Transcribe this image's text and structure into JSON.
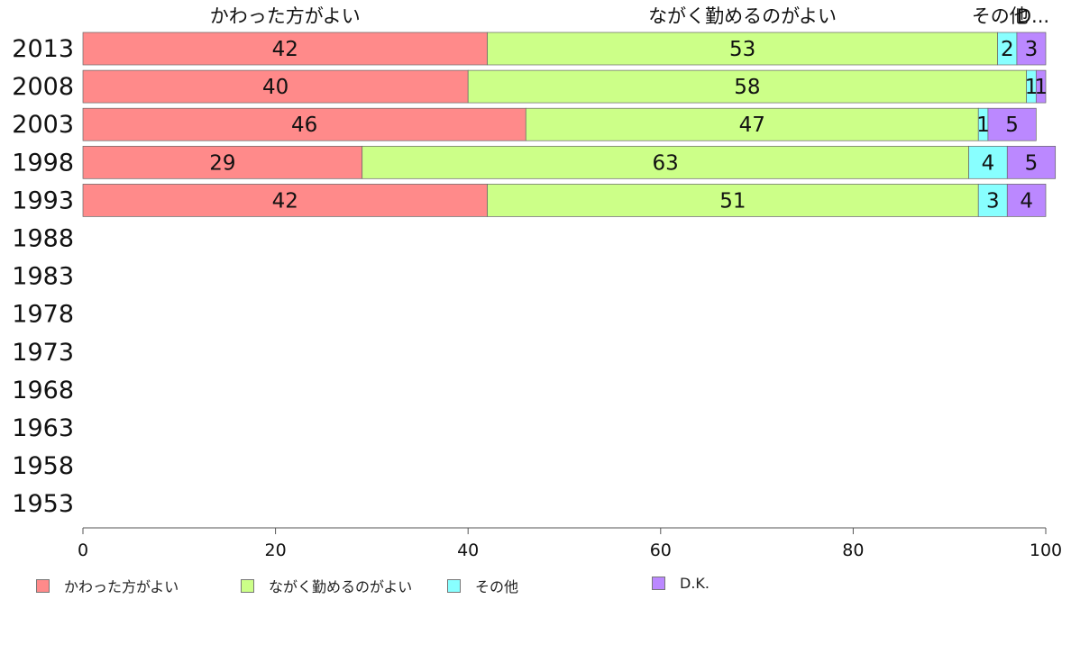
{
  "chart_data": {
    "type": "bar",
    "orientation": "horizontal",
    "stacked": true,
    "categories": [
      "2013",
      "2008",
      "2003",
      "1998",
      "1993",
      "1988",
      "1983",
      "1978",
      "1973",
      "1968",
      "1963",
      "1958",
      "1953"
    ],
    "series": [
      {
        "name": "かわった方がよい",
        "values": [
          42,
          40,
          46,
          29,
          42,
          null,
          null,
          null,
          null,
          null,
          null,
          null,
          null
        ],
        "color": "#ff8a8a"
      },
      {
        "name": "ながく勤めるのがよい",
        "values": [
          53,
          58,
          47,
          63,
          51,
          null,
          null,
          null,
          null,
          null,
          null,
          null,
          null
        ],
        "color": "#ccff88"
      },
      {
        "name": "その他",
        "values": [
          2,
          1,
          1,
          4,
          3,
          null,
          null,
          null,
          null,
          null,
          null,
          null,
          null
        ],
        "color": "#88ffff"
      },
      {
        "name": "D.K.",
        "values": [
          3,
          1,
          5,
          5,
          4,
          null,
          null,
          null,
          null,
          null,
          null,
          null,
          null
        ],
        "color": "#bb88ff"
      }
    ],
    "top_labels": [
      "かわった方がよい",
      "ながく勤めるのがよい",
      "その他",
      "D..."
    ],
    "xlim": [
      0,
      100
    ],
    "xticks": [
      0,
      20,
      40,
      60,
      80,
      100
    ],
    "grid": false,
    "legend_position": "bottom"
  }
}
